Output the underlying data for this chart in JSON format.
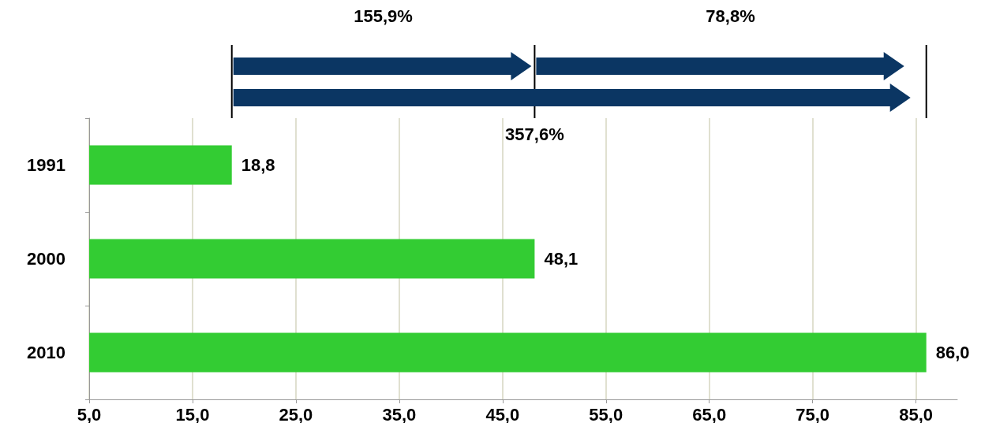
{
  "chart_data": {
    "type": "bar",
    "orientation": "horizontal",
    "categories": [
      "1991",
      "2000",
      "2010"
    ],
    "values": [
      18.8,
      48.1,
      86.0
    ],
    "value_labels": [
      "18,8",
      "48,1",
      "86,0"
    ],
    "color": "#33cc33",
    "xlim": [
      5,
      89
    ],
    "xticks": [
      {
        "value": 5,
        "label": "5,0"
      },
      {
        "value": 15,
        "label": "15,0"
      },
      {
        "value": 25,
        "label": "25,0"
      },
      {
        "value": 35,
        "label": "35,0"
      },
      {
        "value": 45,
        "label": "45,0"
      },
      {
        "value": 55,
        "label": "55,0"
      },
      {
        "value": 65,
        "label": "65,0"
      },
      {
        "value": 75,
        "label": "75,0"
      },
      {
        "value": 85,
        "label": "85,0"
      }
    ],
    "grid": "x",
    "annotations": [
      "155,9%",
      "78,8%",
      "357,6%"
    ]
  }
}
